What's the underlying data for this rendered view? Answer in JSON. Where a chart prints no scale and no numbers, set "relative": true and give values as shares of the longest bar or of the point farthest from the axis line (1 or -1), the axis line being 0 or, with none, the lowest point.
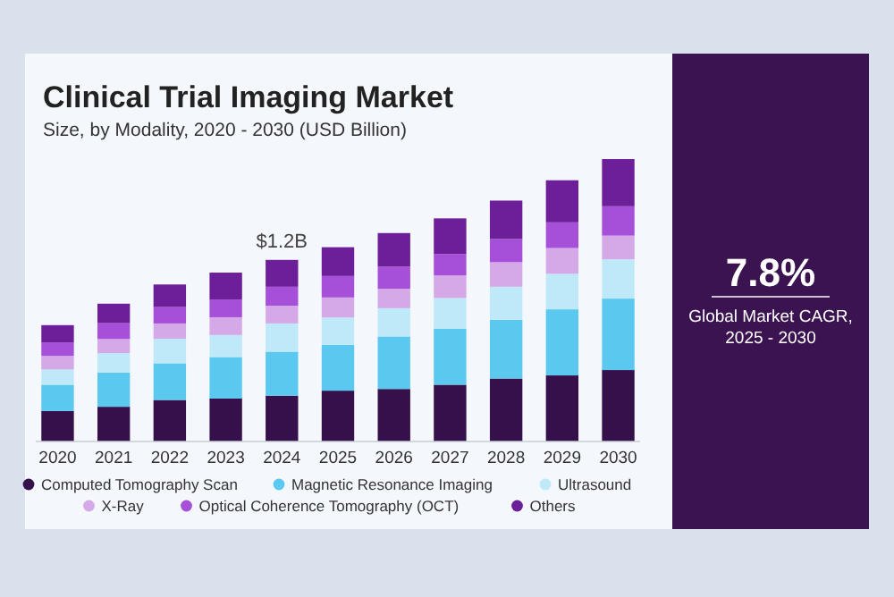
{
  "chart_data": {
    "type": "bar",
    "title": "Clinical Trial Imaging Market",
    "subtitle": "Size, by Modality, 2020 - 2030 (USD Billion)",
    "relative": true,
    "stacked": true,
    "legend": "bottom",
    "categories": [
      "2020",
      "2021",
      "2022",
      "2023",
      "2024",
      "2025",
      "2026",
      "2027",
      "2028",
      "2029",
      "2030"
    ],
    "series": [
      {
        "name": "Computed Tomography Scan",
        "color": "#35104a",
        "values": [
          0.108,
          0.123,
          0.147,
          0.152,
          0.162,
          0.18,
          0.186,
          0.201,
          0.223,
          0.234,
          0.253
        ]
      },
      {
        "name": "Magnetic Resonance Imaging",
        "color": "#5bc8f0",
        "values": [
          0.093,
          0.121,
          0.13,
          0.147,
          0.156,
          0.162,
          0.186,
          0.199,
          0.208,
          0.234,
          0.253
        ]
      },
      {
        "name": "Ultrasound",
        "color": "#bfe9f8",
        "values": [
          0.054,
          0.069,
          0.087,
          0.078,
          0.1,
          0.097,
          0.1,
          0.108,
          0.117,
          0.126,
          0.139
        ]
      },
      {
        "name": "X-Ray",
        "color": "#d5a8e8",
        "values": [
          0.048,
          0.05,
          0.054,
          0.063,
          0.063,
          0.071,
          0.069,
          0.08,
          0.087,
          0.091,
          0.084
        ]
      },
      {
        "name": "Optical Coherence Tomography (OCT)",
        "color": "#a64fd8",
        "values": [
          0.048,
          0.056,
          0.058,
          0.063,
          0.067,
          0.076,
          0.078,
          0.076,
          0.082,
          0.091,
          0.104
        ]
      },
      {
        "name": "Others",
        "color": "#6c1f98",
        "values": [
          0.061,
          0.069,
          0.08,
          0.095,
          0.095,
          0.102,
          0.119,
          0.126,
          0.136,
          0.149,
          0.167
        ]
      }
    ],
    "annotations": [
      {
        "text": "$1.2B",
        "x": "2024",
        "y": 0.643
      },
      "7.8%",
      "Global Market CAGR, 2025 - 2030"
    ]
  }
}
